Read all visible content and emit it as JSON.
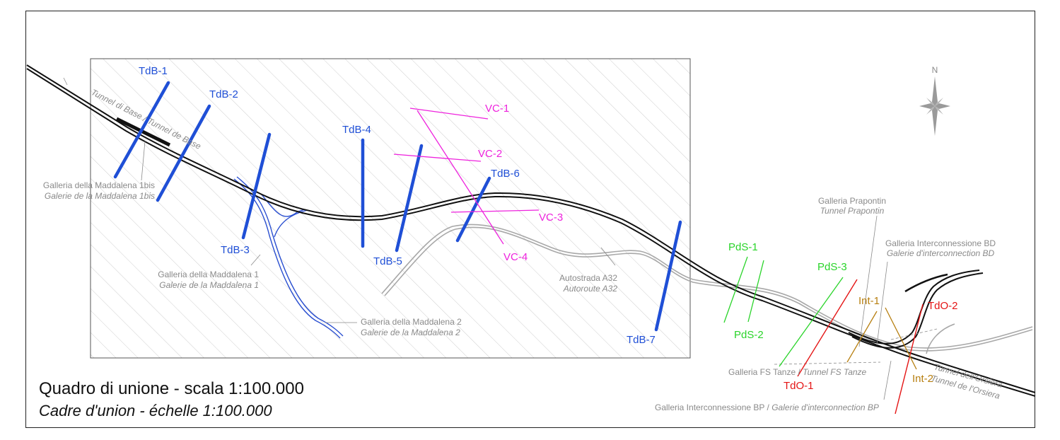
{
  "title": {
    "it": "Quadro di unione - scala 1:100.000",
    "fr": "Cadre d'union - échelle 1:100.000"
  },
  "north_label": "N",
  "colors": {
    "tdb": "#1f4fd6",
    "vc": "#ee22dd",
    "pds": "#2ad42a",
    "tdo": "#e41414",
    "int": "#b77f10",
    "rail": "#111111",
    "road": "#a8a8a8",
    "gallery": "#2a4fd0",
    "text_gray": "#8a8a8a"
  },
  "sections": {
    "tdb1": "TdB-1",
    "tdb2": "TdB-2",
    "tdb3": "TdB-3",
    "tdb4": "TdB-4",
    "tdb5": "TdB-5",
    "tdb6": "TdB-6",
    "tdb7": "TdB-7",
    "vc1": "VC-1",
    "vc2": "VC-2",
    "vc3": "VC-3",
    "vc4": "VC-4",
    "pds1": "PdS-1",
    "pds2": "PdS-2",
    "pds3": "PdS-3",
    "tdo1": "TdO-1",
    "tdo2": "TdO-2",
    "int1": "Int-1",
    "int2": "Int-2"
  },
  "labels": {
    "tunnel_base": "Tunnel di Base / Tunnel de Base",
    "madd1bis_it": "Galleria della Maddalena 1bis",
    "madd1bis_fr": "Galerie de la Maddalena 1bis",
    "madd1_it": "Galleria della Maddalena 1",
    "madd1_fr": "Galerie de la Maddalena 1",
    "madd2_it": "Galleria della Maddalena 2",
    "madd2_fr": "Galerie de la Maddalena 2",
    "a32_it": "Autostrada A32",
    "a32_fr": "Autoroute A32",
    "prapontin_it": "Galleria Prapontin",
    "prapontin_fr": "Tunnel Prapontin",
    "intbd_it": "Galleria Interconnessione BD",
    "intbd_fr": "Galerie d'interconnection BD",
    "tanze_it": "Galleria FS Tanze / ",
    "tanze_fr": "Tunnel FS Tanze",
    "intbp_it": "Galleria Interconnessione BP / ",
    "intbp_fr": "Galerie d'interconnection BP",
    "orsiera_it": "Tunnel dell'Orsiera",
    "orsiera_fr": "Tunnel de l'Orsiera"
  }
}
